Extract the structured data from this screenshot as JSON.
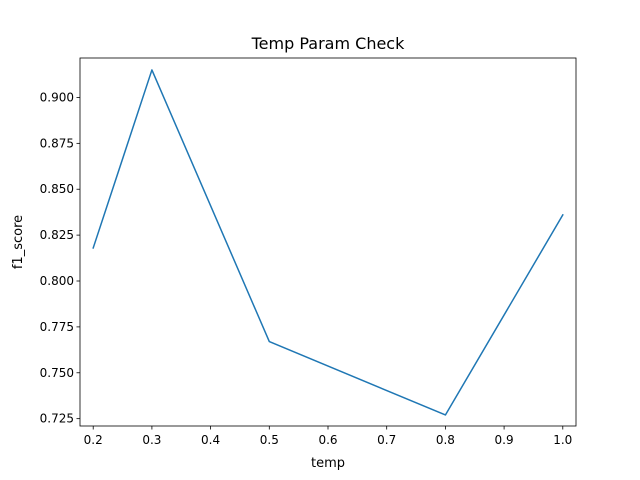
{
  "chart_data": {
    "type": "line",
    "title": "Temp Param Check",
    "xlabel": "temp",
    "ylabel": "f1_score",
    "xlim": [
      0.1775,
      1.0225
    ],
    "ylim": [
      0.721,
      0.9215
    ],
    "grid": false,
    "x_ticks": [
      {
        "value": 0.2,
        "label": "0.2"
      },
      {
        "value": 0.3,
        "label": "0.3"
      },
      {
        "value": 0.4,
        "label": "0.4"
      },
      {
        "value": 0.5,
        "label": "0.5"
      },
      {
        "value": 0.6,
        "label": "0.6"
      },
      {
        "value": 0.7,
        "label": "0.7"
      },
      {
        "value": 0.8,
        "label": "0.8"
      },
      {
        "value": 0.9,
        "label": "0.9"
      },
      {
        "value": 1.0,
        "label": "1.0"
      }
    ],
    "y_ticks": [
      {
        "value": 0.725,
        "label": "0.725"
      },
      {
        "value": 0.75,
        "label": "0.750"
      },
      {
        "value": 0.775,
        "label": "0.775"
      },
      {
        "value": 0.8,
        "label": "0.800"
      },
      {
        "value": 0.825,
        "label": "0.825"
      },
      {
        "value": 0.85,
        "label": "0.850"
      },
      {
        "value": 0.875,
        "label": "0.875"
      },
      {
        "value": 0.9,
        "label": "0.900"
      }
    ],
    "series": [
      {
        "color": "#1f77b4",
        "x": [
          0.2,
          0.3,
          0.5,
          0.8,
          1.0
        ],
        "y": [
          0.818,
          0.915,
          0.767,
          0.727,
          0.836
        ]
      }
    ]
  }
}
